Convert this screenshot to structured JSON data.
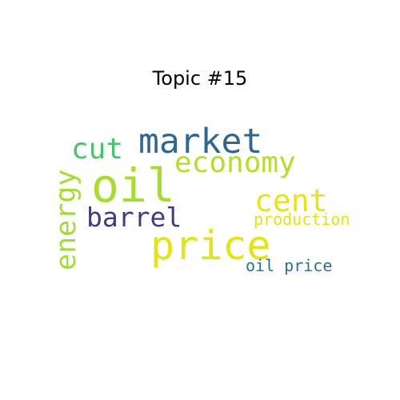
{
  "title": "Topic #15",
  "words": {
    "oil": {
      "text": "oil",
      "color": "#a8db34"
    },
    "price": {
      "text": "price",
      "color": "#e2e418"
    },
    "market": {
      "text": "market",
      "color": "#31668e"
    },
    "economy": {
      "text": "economy",
      "color": "#b5de2b"
    },
    "cent": {
      "text": "cent",
      "color": "#e7e419"
    },
    "cut": {
      "text": "cut",
      "color": "#4ac16d"
    },
    "energy": {
      "text": "energy",
      "color": "#a5db36"
    },
    "barrel": {
      "text": "barrel",
      "color": "#443983"
    },
    "production": {
      "text": "production",
      "color": "#e0e41a"
    },
    "oil_price": {
      "text": "oil price",
      "color": "#2e6f8e"
    }
  }
}
